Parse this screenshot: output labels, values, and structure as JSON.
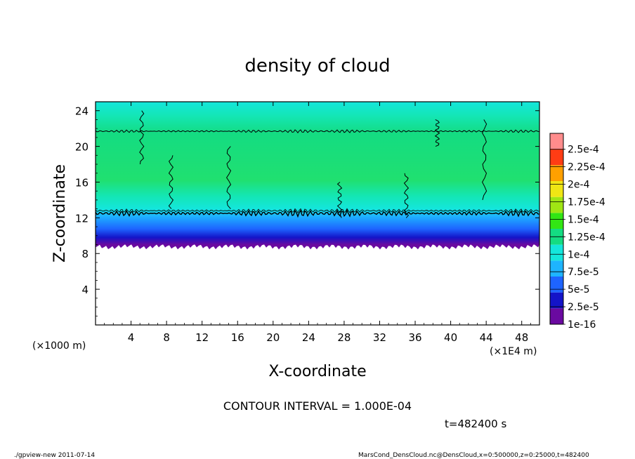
{
  "chart_data": {
    "type": "heatmap",
    "title": "density of cloud",
    "xlabel": "X-coordinate",
    "ylabel": "Z-coordinate",
    "x_unit_left": "(×1000 m)",
    "x_unit_right": "(×1E4 m)",
    "xlim": [
      0,
      50
    ],
    "ylim": [
      0,
      25
    ],
    "x_ticks": [
      "4",
      "8",
      "12",
      "16",
      "20",
      "24",
      "28",
      "32",
      "36",
      "40",
      "44",
      "48"
    ],
    "y_ticks": [
      "4",
      "8",
      "12",
      "16",
      "20",
      "24"
    ],
    "colorbar": {
      "labels": [
        "1e-16",
        "2.5e-5",
        "5e-5",
        "7.5e-5",
        "1e-4",
        "1.25e-4",
        "1.5e-4",
        "1.75e-4",
        "2e-4",
        "2.25e-4",
        "2.5e-4"
      ],
      "colors": [
        "#6a0aa0",
        "#1414c8",
        "#1e64ff",
        "#1eb4ff",
        "#14e6dc",
        "#14dc82",
        "#32e614",
        "#a0e614",
        "#f0e614",
        "#ffa000",
        "#ff3c14",
        "#ff8c8c"
      ]
    },
    "cloud_layer": {
      "base_z": 9.0,
      "lower_band_z": 12.5,
      "upper_band_z": 21.7,
      "top_z": 25
    },
    "contour_interval": "CONTOUR INTERVAL = 1.000E-04"
  },
  "annotations": {
    "time": "t=482400 s",
    "footer_left": "./gpview-new  2011-07-14",
    "footer_right": "MarsCond_DensCloud.nc@DensCloud,x=0:500000,z=0:25000,t=482400"
  }
}
